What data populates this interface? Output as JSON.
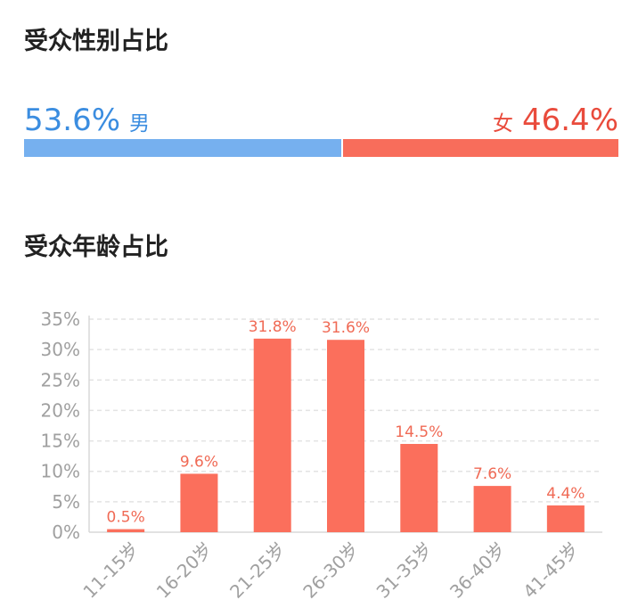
{
  "gender": {
    "title": "受众性别占比",
    "male_pct": "53.6%",
    "male_label": "男",
    "female_label": "女",
    "female_pct": "46.4%",
    "male_value": 53.6,
    "female_value": 46.4,
    "male_color": "#76b0ef",
    "female_color": "#f86d5b"
  },
  "age": {
    "title": "受众年龄占比"
  },
  "chart_data": {
    "type": "bar",
    "categories": [
      "11-15岁",
      "16-20岁",
      "21-25岁",
      "26-30岁",
      "31-35岁",
      "36-40岁",
      "41-45岁"
    ],
    "values": [
      0.5,
      9.6,
      31.8,
      31.6,
      14.5,
      7.6,
      4.4
    ],
    "value_labels": [
      "0.5%",
      "9.6%",
      "31.8%",
      "31.6%",
      "14.5%",
      "7.6%",
      "4.4%"
    ],
    "yticks": [
      "0%",
      "5%",
      "10%",
      "15%",
      "20%",
      "25%",
      "30%",
      "35%"
    ],
    "ylim": [
      0,
      35
    ],
    "grid": true,
    "bar_color": "#fb6f5c",
    "title": "",
    "xlabel": "",
    "ylabel": ""
  }
}
